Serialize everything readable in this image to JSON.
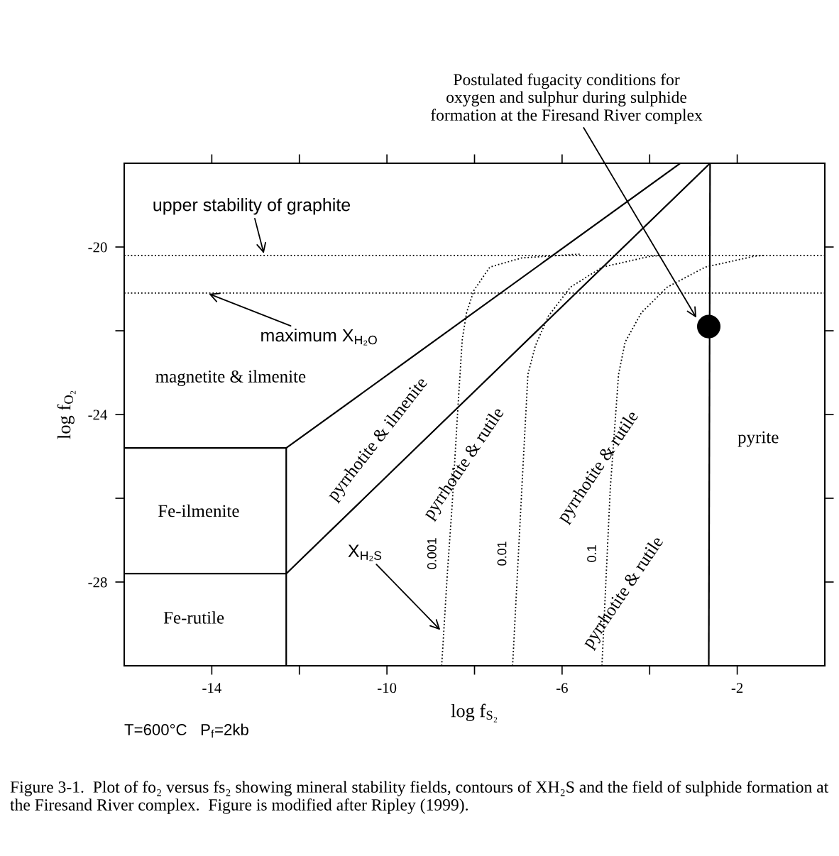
{
  "chart_data": {
    "type": "line",
    "xlabel": "log f$_{S₂}$",
    "ylabel": "log f$_{O₂}$",
    "xlim": [
      -16,
      0
    ],
    "ylim": [
      -30,
      -18
    ],
    "xticks": [
      {
        "value": -14,
        "label": "-14"
      },
      {
        "value": -12,
        "label": null
      },
      {
        "value": -10,
        "label": "-10"
      },
      {
        "value": -8,
        "label": null
      },
      {
        "value": -6,
        "label": "-6"
      },
      {
        "value": -4,
        "label": null
      },
      {
        "value": -2,
        "label": "-2"
      }
    ],
    "yticks": [
      {
        "value": -28,
        "label": "-28"
      },
      {
        "value": -26,
        "label": null
      },
      {
        "value": -24,
        "label": "-24"
      },
      {
        "value": -22,
        "label": null
      },
      {
        "value": -20,
        "label": "-20"
      }
    ],
    "grid": false,
    "series": [
      {
        "color": "#000000",
        "line_style": "solid",
        "x": [
          -16,
          -12.3,
          -3.3
        ],
        "values": [
          -24.8,
          -24.8,
          -18
        ]
      },
      {
        "color": "#000000",
        "line_style": "solid",
        "x": [
          -16,
          -12.3,
          -2.62
        ],
        "values": [
          -27.8,
          -27.8,
          -18
        ]
      },
      {
        "color": "#000000",
        "line_style": "solid",
        "x": [
          -12.3,
          -12.3
        ],
        "values": [
          -24.8,
          -30
        ]
      },
      {
        "color": "#000000",
        "line_style": "solid",
        "x": [
          -2.62,
          -2.65
        ],
        "values": [
          -18,
          -30
        ]
      },
      {
        "color": "#000000",
        "line_style": "dotted",
        "x": [
          -8.75,
          -8.62,
          -8.51,
          -8.38,
          -8.28,
          -8.18,
          -8.01,
          -7.65,
          -6.92,
          -5.6
        ],
        "values": [
          -30,
          -27.79,
          -26.15,
          -23.85,
          -22.21,
          -21.56,
          -21.03,
          -20.48,
          -20.26,
          -20.17
        ]
      },
      {
        "color": "#000000",
        "line_style": "dotted",
        "x": [
          -7.13,
          -6.92,
          -6.78,
          -6.61,
          -6.32,
          -5.81,
          -5.08,
          -3.98,
          -3.67
        ],
        "values": [
          -30,
          -25.78,
          -23.04,
          -22.36,
          -21.66,
          -20.96,
          -20.48,
          -20.22,
          -20.2
        ]
      },
      {
        "color": "#000000",
        "line_style": "dotted",
        "x": [
          -5.09,
          -4.9,
          -4.71,
          -4.56,
          -4.19,
          -3.6,
          -2.73,
          -1.61,
          -1.4
        ],
        "values": [
          -30,
          -25.78,
          -23.04,
          -22.27,
          -21.57,
          -20.96,
          -20.48,
          -20.22,
          -20.2
        ]
      },
      {
        "type": "scatter",
        "color": "#000000",
        "marker": "circle",
        "x": [
          -2.65
        ],
        "values": [
          -21.9
        ]
      }
    ],
    "ref_lines": [
      {
        "axis": "y",
        "value": -20.2,
        "color": "#000000",
        "line_style": "dotted"
      },
      {
        "axis": "y",
        "value": -21.1,
        "color": "#000000",
        "line_style": "dotted"
      }
    ],
    "annotations": [
      {
        "text": "Postulated fugacity conditions for\noxygen and sulphur during sulphide\nformation at the Firesand River complex",
        "x": -2.91,
        "y": -21.73
      },
      {
        "text": "upper stability of graphite",
        "x": -12.8,
        "y": -20.2
      },
      {
        "text": "maximum X$_{H₂O}$",
        "x": -14.11,
        "y": -21.1
      },
      {
        "text": "X$_{H₂S}$",
        "x": -8.75,
        "y": -29.18
      },
      "magnetite & ilmenite",
      "Fe-ilmenite",
      "Fe-rutile",
      "pyrrhotite & ilmenite",
      "pyrrhotite & rutile",
      "pyrrhotite & rutile",
      "pyrrhotite & rutile",
      "pyrite",
      "0.001",
      "0.01",
      "0.1",
      "T=600°C   P$_{f}$=2kb",
      "Figure 3-1.  Plot of fo₂ versus fs₂ showing mineral stability fields, contours of XH₂S and the field of sulphide formation at the Firesand River complex.  Figure is modified after Ripley (1999)."
    ]
  }
}
